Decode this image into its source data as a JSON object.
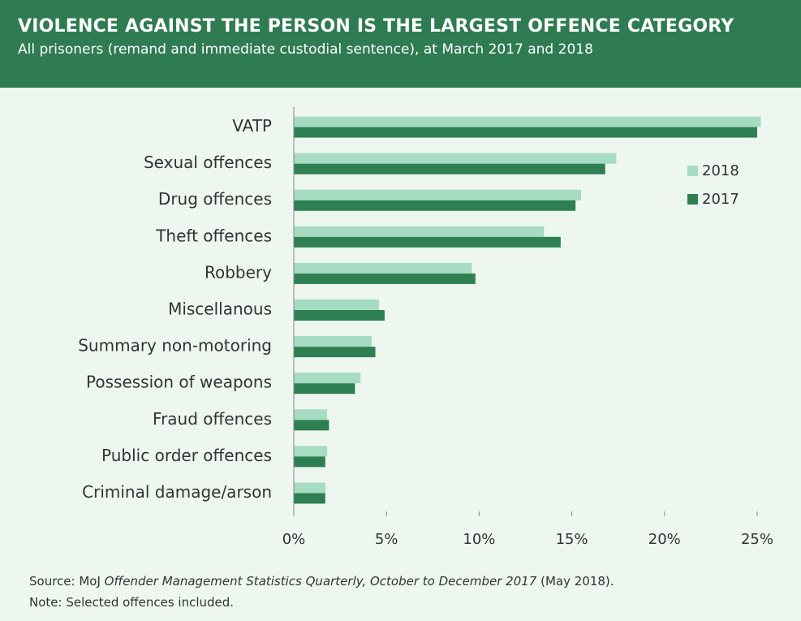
{
  "chart_data": {
    "type": "bar",
    "orientation": "horizontal",
    "title": "VIOLENCE AGAINST THE PERSON IS THE LARGEST OFFENCE CATEGORY",
    "subtitle": "All prisoners (remand and immediate custodial sentence),  at March 2017 and 2018",
    "categories": [
      "VATP",
      "Sexual offences",
      "Drug offences",
      "Theft offences",
      "Robbery",
      "Miscellanous",
      "Summary non-motoring",
      "Possession of weapons",
      "Fraud offences",
      "Public order offences",
      "Criminal damage/arson"
    ],
    "series": [
      {
        "name": "2018",
        "color": "#a6dcc1",
        "values": [
          25.2,
          17.4,
          15.5,
          13.5,
          9.6,
          4.6,
          4.2,
          3.6,
          1.8,
          1.8,
          1.7
        ]
      },
      {
        "name": "2017",
        "color": "#2e8052",
        "values": [
          25.0,
          16.8,
          15.2,
          14.4,
          9.8,
          4.9,
          4.4,
          3.3,
          1.9,
          1.7,
          1.7
        ]
      }
    ],
    "xlim": [
      0,
      25
    ],
    "xticks": [
      {
        "value": 0,
        "label": "0%"
      },
      {
        "value": 5,
        "label": "5%"
      },
      {
        "value": 10,
        "label": "10%"
      },
      {
        "value": 15,
        "label": "15%"
      },
      {
        "value": 20,
        "label": "20%"
      },
      {
        "value": 25,
        "label": "25%"
      }
    ],
    "grid": false,
    "legend": "upper right",
    "source": {
      "prefix": "Source:  MoJ ",
      "title": "Offender Management Statistics Quarterly, October to December 2017",
      "suffix": " (May 2018)."
    },
    "note": "Note: Selected  offences  included."
  }
}
